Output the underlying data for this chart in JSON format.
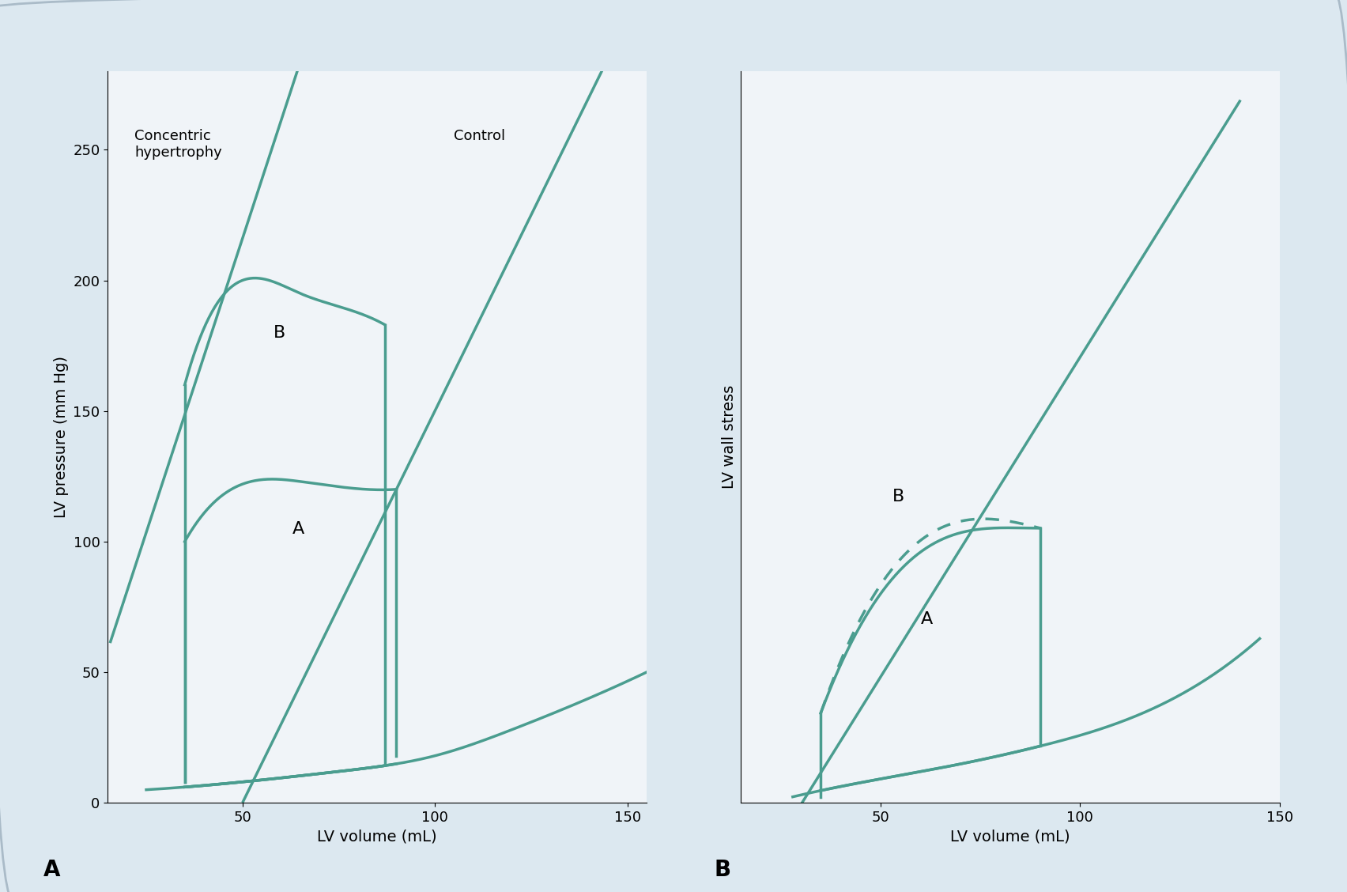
{
  "teal_color": "#4a9d8f",
  "bg_outer": "#dce8f0",
  "bg_inner": "#f0f4f8",
  "fig_width": 17.04,
  "fig_height": 11.28,
  "panel_A": {
    "xlabel": "LV volume (mL)",
    "ylabel": "LV pressure (mm Hg)",
    "xlim": [
      15,
      155
    ],
    "ylim": [
      0,
      280
    ],
    "xticks": [
      50,
      100,
      150
    ],
    "yticks": [
      0,
      50,
      100,
      150,
      200,
      250
    ],
    "label": "A",
    "loop_A_label": "A",
    "loop_B_label": "B",
    "concentric_label": "Concentric\nhypertrophy",
    "control_label": "Control"
  },
  "panel_B": {
    "xlabel": "LV volume (mL)",
    "ylabel": "LV wall stress",
    "xlim": [
      15,
      145
    ],
    "ylim": [
      -5,
      240
    ],
    "xticks": [
      50,
      100,
      150
    ],
    "label": "B",
    "loop_A_label": "A",
    "loop_B_label": "B"
  }
}
